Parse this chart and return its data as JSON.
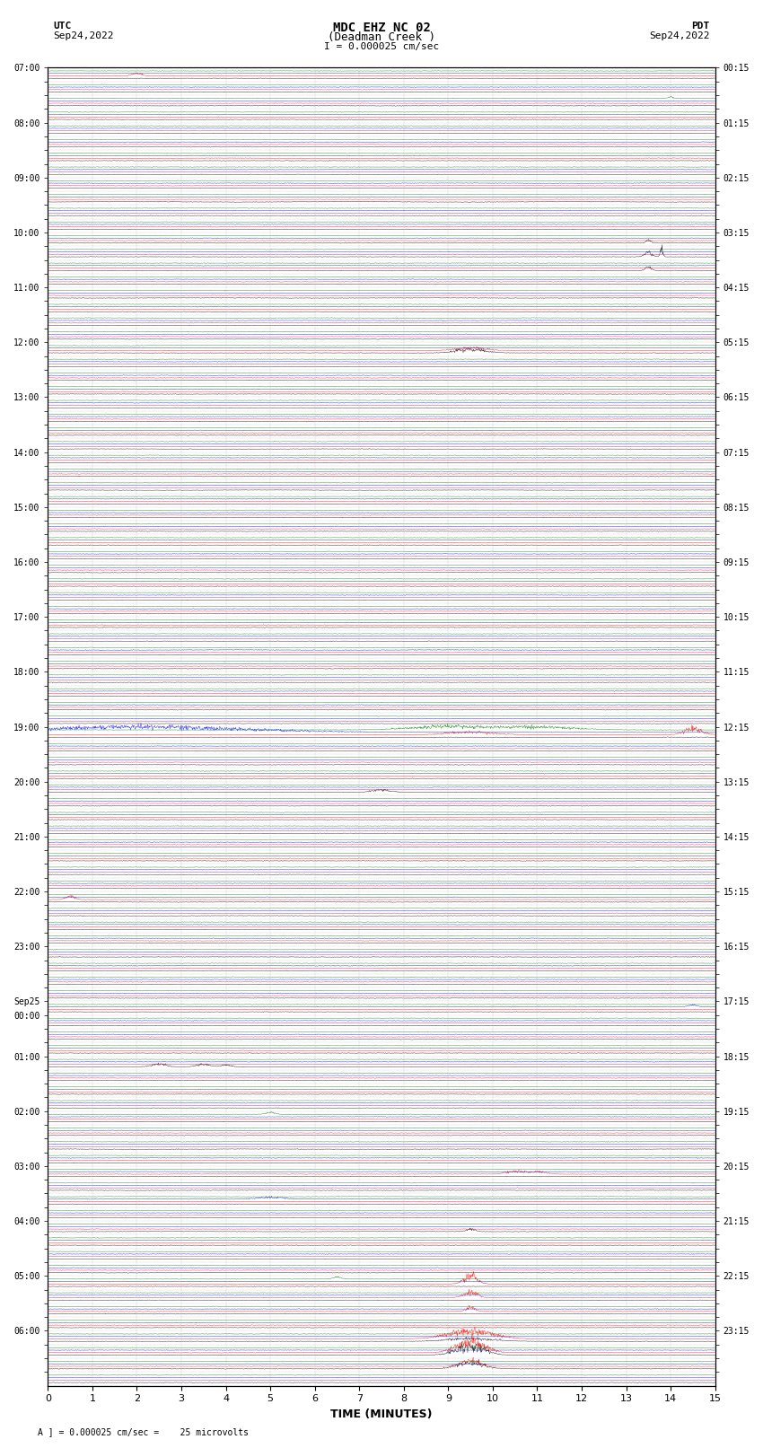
{
  "title_line1": "MDC EHZ NC 02",
  "title_line2": "(Deadman Creek )",
  "scale_label": "I = 0.000025 cm/sec",
  "utc_label": "UTC",
  "utc_date": "Sep24,2022",
  "pdt_label": "PDT",
  "pdt_date": "Sep24,2022",
  "xlabel": "TIME (MINUTES)",
  "footer": "A ] = 0.000025 cm/sec =    25 microvolts",
  "xlim": [
    0,
    15
  ],
  "xticks": [
    0,
    1,
    2,
    3,
    4,
    5,
    6,
    7,
    8,
    9,
    10,
    11,
    12,
    13,
    14,
    15
  ],
  "bg_color": "#ffffff",
  "grid_color": "#aaaaaa",
  "trace_colors": [
    "black",
    "red",
    "blue",
    "green"
  ],
  "left_times": [
    "07:00",
    "",
    "",
    "",
    "08:00",
    "",
    "",
    "",
    "09:00",
    "",
    "",
    "",
    "10:00",
    "",
    "",
    "",
    "11:00",
    "",
    "",
    "",
    "12:00",
    "",
    "",
    "",
    "13:00",
    "",
    "",
    "",
    "14:00",
    "",
    "",
    "",
    "15:00",
    "",
    "",
    "",
    "16:00",
    "",
    "",
    "",
    "17:00",
    "",
    "",
    "",
    "18:00",
    "",
    "",
    "",
    "19:00",
    "",
    "",
    "",
    "20:00",
    "",
    "",
    "",
    "21:00",
    "",
    "",
    "",
    "22:00",
    "",
    "",
    "",
    "23:00",
    "",
    "",
    "",
    "Sep25",
    "00:00",
    "",
    "",
    "01:00",
    "",
    "",
    "",
    "02:00",
    "",
    "",
    "",
    "03:00",
    "",
    "",
    "",
    "04:00",
    "",
    "",
    "",
    "05:00",
    "",
    "",
    "",
    "06:00",
    "",
    "",
    ""
  ],
  "right_times": [
    "00:15",
    "",
    "",
    "",
    "01:15",
    "",
    "",
    "",
    "02:15",
    "",
    "",
    "",
    "03:15",
    "",
    "",
    "",
    "04:15",
    "",
    "",
    "",
    "05:15",
    "",
    "",
    "",
    "06:15",
    "",
    "",
    "",
    "07:15",
    "",
    "",
    "",
    "08:15",
    "",
    "",
    "",
    "09:15",
    "",
    "",
    "",
    "10:15",
    "",
    "",
    "",
    "11:15",
    "",
    "",
    "",
    "12:15",
    "",
    "",
    "",
    "13:15",
    "",
    "",
    "",
    "14:15",
    "",
    "",
    "",
    "15:15",
    "",
    "",
    "",
    "16:15",
    "",
    "",
    "",
    "17:15",
    "",
    "",
    "",
    "18:15",
    "",
    "",
    "",
    "19:15",
    "",
    "",
    "",
    "20:15",
    "",
    "",
    "",
    "21:15",
    "",
    "",
    "",
    "22:15",
    "",
    "",
    "",
    "23:15",
    "",
    "",
    ""
  ],
  "n_rows": 96,
  "n_traces_per_row": 4,
  "minutes_per_row": 15,
  "noise_amplitude": 0.12,
  "seed": 42
}
